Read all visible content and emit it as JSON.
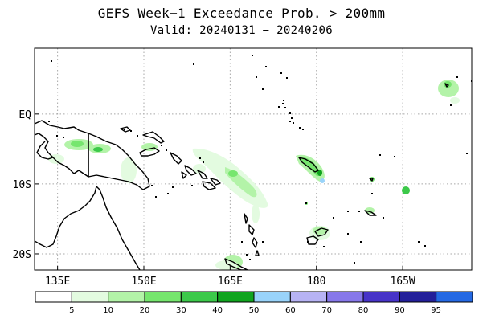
{
  "title": {
    "line1": "GEFS Week−1 Exceedance Prob. > 200mm",
    "line2": "Valid: 20240131 − 20240206"
  },
  "axes": {
    "y_ticks": [
      {
        "label": "EQ",
        "lat": 0
      },
      {
        "label": "10S",
        "lat": -10
      },
      {
        "label": "20S",
        "lat": -20
      }
    ],
    "x_ticks": [
      {
        "label": "135E",
        "lon": 135
      },
      {
        "label": "150E",
        "lon": 150
      },
      {
        "label": "165E",
        "lon": 165
      },
      {
        "label": "180",
        "lon": 180
      },
      {
        "label": "165W",
        "lon": 195
      }
    ],
    "lon_range": [
      131,
      207
    ],
    "lat_range": [
      -22.3,
      9.4
    ],
    "grid": "dotted"
  },
  "colorbar": {
    "levels": [
      "5",
      "10",
      "20",
      "30",
      "40",
      "50",
      "60",
      "70",
      "80",
      "90",
      "95"
    ],
    "colors": [
      "#ffffff",
      "#e3fbe0",
      "#b3f3a8",
      "#76e66e",
      "#3cc94a",
      "#10a41e",
      "#99d3fa",
      "#b7b3f4",
      "#8778ea",
      "#4733c8",
      "#231f9a",
      "#2469e4"
    ]
  },
  "colors": {
    "land_outline": "#000000",
    "grid": "#a8a8a8"
  }
}
